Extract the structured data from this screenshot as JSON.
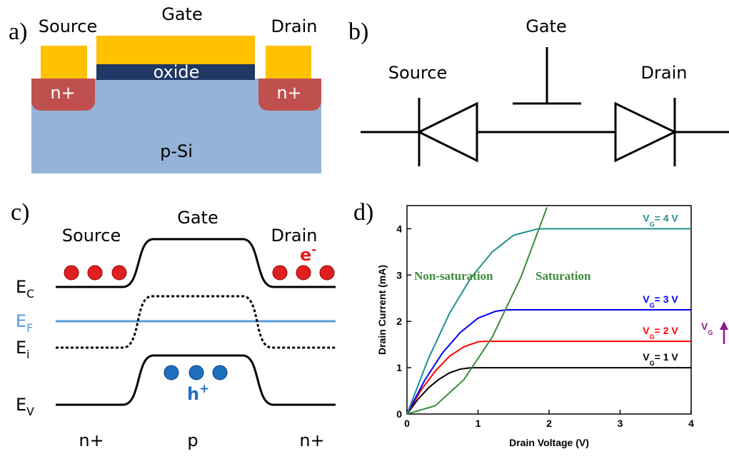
{
  "panel_a": {
    "label": "a)",
    "source": "Source",
    "gate": "Gate",
    "drain": "Drain",
    "oxide": "oxide",
    "n_left": "n+",
    "n_right": "n+",
    "substrate": "p-Si"
  },
  "panel_b": {
    "label": "b)",
    "gate": "Gate",
    "source": "Source",
    "drain": "Drain"
  },
  "panel_c": {
    "label": "c)",
    "source": "Source",
    "gate": "Gate",
    "drain": "Drain",
    "levels": [
      {
        "main": "E",
        "sub": "C"
      },
      {
        "main": "E",
        "sub": "F"
      },
      {
        "main": "E",
        "sub": "i"
      },
      {
        "main": "E",
        "sub": "V"
      }
    ],
    "electron": {
      "main": "e",
      "sup": "-"
    },
    "hole": {
      "main": "h",
      "sup": "+"
    },
    "regions": [
      "n+",
      "p",
      "n+"
    ]
  },
  "chart_data": {
    "type": "line",
    "panel_label": "d)",
    "x_label": "Drain Voltage (V)",
    "y_label": "Drain Current (mA)",
    "xlim": [
      0,
      4
    ],
    "ylim": [
      0,
      4.5
    ],
    "xticks": [
      0,
      1,
      2,
      3,
      4
    ],
    "yticks": [
      0,
      1,
      2,
      3,
      4
    ],
    "series": [
      {
        "label_main": "V",
        "label_sub": "G",
        "label_rest": "= 1 V",
        "color": "#000000",
        "x": [
          0,
          0.15,
          0.3,
          0.45,
          0.6,
          0.75,
          0.9,
          4
        ],
        "values": [
          0,
          0.31,
          0.56,
          0.75,
          0.89,
          0.97,
          1,
          1
        ]
      },
      {
        "label_main": "V",
        "label_sub": "G",
        "label_rest": "= 2 V",
        "color": "#ff0000",
        "x": [
          0,
          0.2,
          0.4,
          0.6,
          0.8,
          1.0,
          1.1,
          4
        ],
        "values": [
          0,
          0.52,
          0.93,
          1.25,
          1.45,
          1.56,
          1.57,
          1.57
        ]
      },
      {
        "label_main": "V",
        "label_sub": "G",
        "label_rest": "= 3 V",
        "color": "#0000ff",
        "x": [
          0,
          0.25,
          0.5,
          0.75,
          1.0,
          1.25,
          1.4,
          4
        ],
        "values": [
          0,
          0.73,
          1.32,
          1.76,
          2.07,
          2.22,
          2.25,
          2.25
        ]
      },
      {
        "label_main": "V",
        "label_sub": "G",
        "label_rest": "= 4 V",
        "color": "#1f8f8f",
        "x": [
          0,
          0.3,
          0.6,
          0.9,
          1.2,
          1.5,
          1.85,
          4
        ],
        "values": [
          0,
          1.19,
          2.18,
          2.94,
          3.5,
          3.86,
          4,
          4
        ]
      }
    ],
    "boundary": {
      "color": "#3a8a3a",
      "x": [
        0,
        0.4,
        0.8,
        1.2,
        1.6,
        1.97
      ],
      "values": [
        0,
        0.18,
        0.74,
        1.66,
        2.94,
        4.46
      ]
    },
    "annotations": [
      "Non-saturation",
      "Saturation"
    ],
    "arrow_label": {
      "main": "V",
      "sub": "G"
    },
    "arrow_color": "#8b1a8b"
  }
}
